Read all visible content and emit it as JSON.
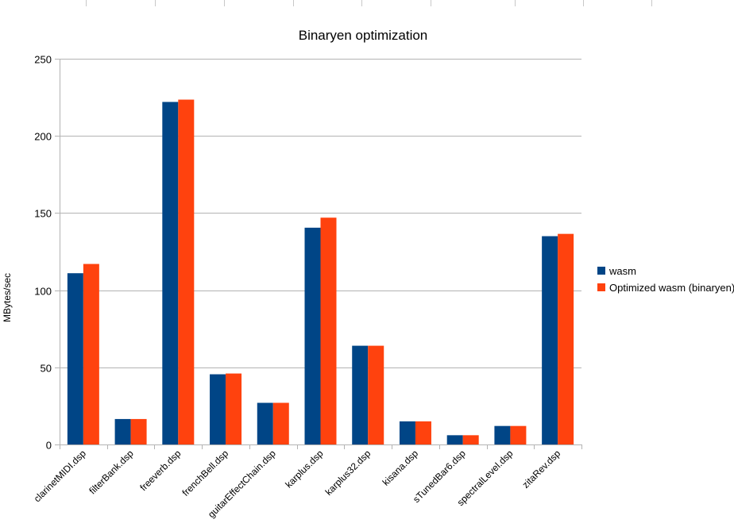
{
  "chart_data": {
    "type": "bar",
    "title": "Binaryen optimization",
    "xlabel": "",
    "ylabel": "MBytes/sec",
    "ylim": [
      0,
      250
    ],
    "yticks": [
      0,
      50,
      100,
      150,
      200,
      250
    ],
    "grid": true,
    "legend_position": "right",
    "categories": [
      "clarinetMIDI.dsp",
      "filterBank.dsp",
      "freeverb.dsp",
      "frenchBell.dsp",
      "guitarEffectChain.dsp",
      "karplus.dsp",
      "karplus32.dsp",
      "kisana.dsp",
      "sTunedBar6.dsp",
      "spectralLevel.dsp",
      "zitaRev.dsp"
    ],
    "series": [
      {
        "name": "wasm",
        "color": "#004586",
        "values": [
          111,
          16.5,
          222,
          45.5,
          27,
          140.5,
          64,
          15,
          6,
          12,
          135
        ]
      },
      {
        "name": "Optimized wasm (binaryen)",
        "color": "#ff420e",
        "values": [
          117,
          16.5,
          223.5,
          46,
          27,
          147,
          64,
          15,
          6,
          12,
          136.5
        ]
      }
    ]
  }
}
